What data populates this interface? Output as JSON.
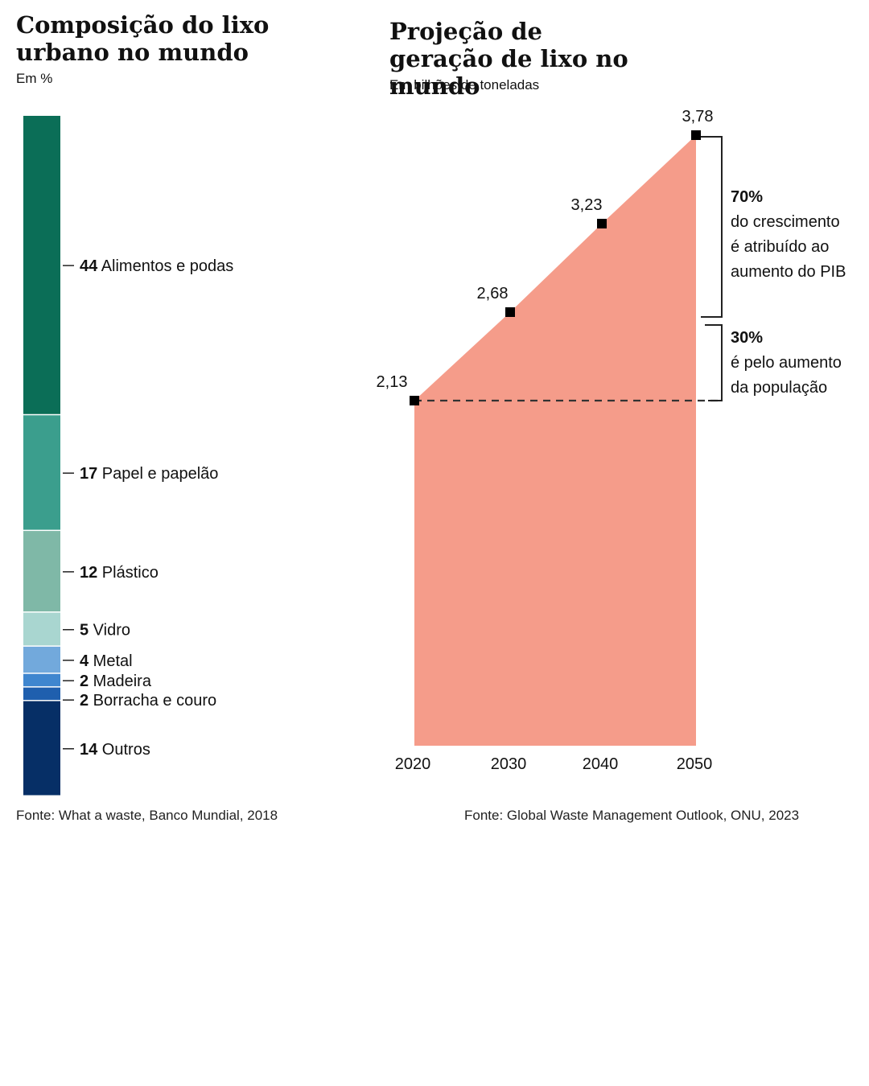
{
  "chart_data": [
    {
      "type": "bar",
      "subtype": "stacked-100",
      "title": "Composição do lixo urbano no mundo",
      "subtitle": "Em %",
      "source": "Fonte: What a waste, Banco Mundial, 2018",
      "categories": [
        "Alimentos e podas",
        "Papel e papelão",
        "Plástico",
        "Vidro",
        "Metal",
        "Madeira",
        "Borracha e couro",
        "Outros"
      ],
      "values": [
        44,
        17,
        12,
        5,
        4,
        2,
        2,
        14
      ],
      "colors": [
        "#0b6e57",
        "#3b9e8d",
        "#7fb8a7",
        "#a9d6d0",
        "#72a9dc",
        "#3f86cf",
        "#1f5fae",
        "#062f66"
      ]
    },
    {
      "type": "area",
      "title": "Projeção de geração de lixo no mundo",
      "subtitle": "Em bilhões de toneladas",
      "source": "Fonte: Global Waste Management Outlook, ONU, 2023",
      "x": [
        2020,
        2030,
        2040,
        2050
      ],
      "x_labels": [
        "2020",
        "2030",
        "2040",
        "2050"
      ],
      "y": [
        2.13,
        2.68,
        3.23,
        3.78
      ],
      "y_labels": [
        "2,13",
        "2,68",
        "3,23",
        "3,78"
      ],
      "ylim": [
        0,
        3.78
      ],
      "color": "#f59c8a",
      "annotations": [
        {
          "bold": "70%",
          "lines": [
            "do crescimento",
            "é atribuído ao",
            "aumento do PIB"
          ]
        },
        {
          "bold": "30%",
          "lines": [
            "é pelo aumento",
            "da população"
          ]
        }
      ]
    }
  ]
}
